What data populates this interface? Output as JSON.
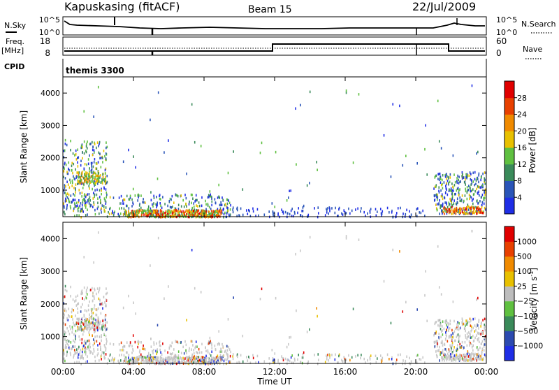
{
  "header": {
    "station": "Kapuskasing (fitACF)",
    "beam": "Beam 15",
    "date": "22/Jul/2009"
  },
  "panel_labels": {
    "nsky": "N.Sky",
    "nsky_ticks": [
      "10^5",
      "10^0"
    ],
    "nsearch": "N.Search",
    "nsearch_ticks": [
      "10^5",
      "10^0"
    ],
    "freq": "Freq.",
    "freq_unit": "[MHz]",
    "freq_ticks": [
      "18",
      "8"
    ],
    "nave": "Nave",
    "nave_ticks": [
      "60",
      "0"
    ],
    "cpid_label": "CPID",
    "cpid_value": "themis 3300"
  },
  "colors": {
    "power": [
      "#1f2ee6",
      "#2a55b8",
      "#3a8a5a",
      "#5fc040",
      "#e8c000",
      "#f08a00",
      "#e84000",
      "#e00000"
    ],
    "velocity": [
      "#1f2ee6",
      "#2c4ab0",
      "#3a8a5a",
      "#5fc040",
      "#bdbdbd",
      "#e8c000",
      "#f08a00",
      "#e84000",
      "#e00000"
    ],
    "ground": "#c8c8c8"
  },
  "chart_data": [
    {
      "type": "heatmap",
      "ylabel": "Slant Range [km]",
      "ylim": [
        180,
        4500
      ],
      "yticks": [
        "1000",
        "2000",
        "3000",
        "4000"
      ],
      "xlim": [
        0,
        24
      ],
      "colorbar": {
        "label": "Power [dB]",
        "ticks": [
          "4",
          "8",
          "12",
          "16",
          "20",
          "24",
          "28"
        ],
        "range": [
          0,
          30
        ]
      }
    },
    {
      "type": "heatmap",
      "ylabel": "Slant Range [km]",
      "ylim": [
        180,
        4500
      ],
      "yticks": [
        "1000",
        "2000",
        "3000",
        "4000"
      ],
      "xlim": [
        0,
        24
      ],
      "xlabel": "Time UT",
      "xticks": [
        "00:00",
        "04:00",
        "08:00",
        "12:00",
        "16:00",
        "20:00",
        "00:00"
      ],
      "colorbar": {
        "label": "Velocity [m s",
        "label_sup": "-1",
        "label_end": "]",
        "ticks": [
          "1000",
          "500",
          "100",
          "25",
          "−25",
          "−100",
          "−500",
          "−1000"
        ]
      }
    }
  ]
}
